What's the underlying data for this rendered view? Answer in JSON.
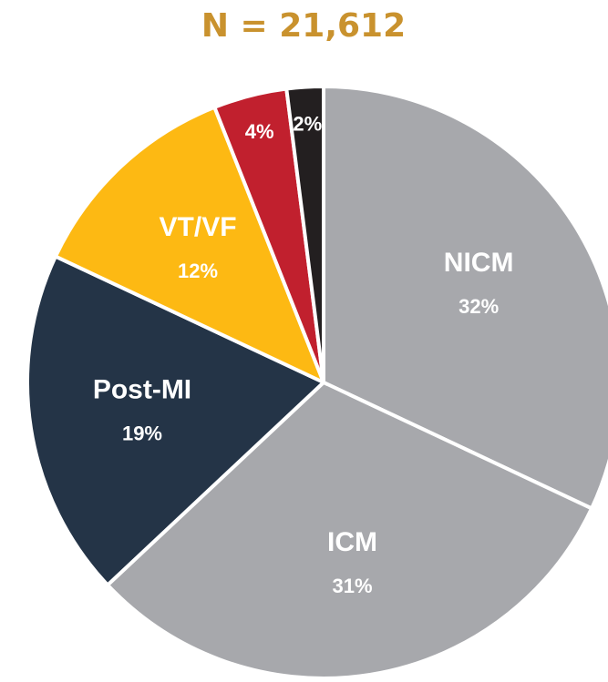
{
  "chart_data": {
    "type": "pie",
    "title": "N = 21,612",
    "categories": [
      "NICM",
      "ICM",
      "Post-MI",
      "VT/VF",
      null,
      null
    ],
    "values": [
      32,
      31,
      19,
      12,
      4,
      2
    ],
    "value_labels": [
      "32%",
      "31%",
      "19%",
      "12%",
      "4%",
      "2%"
    ],
    "colors": [
      "#a7a8ac",
      "#a7a8ac",
      "#243447",
      "#fdb913",
      "#c1202e",
      "#231f20"
    ]
  }
}
